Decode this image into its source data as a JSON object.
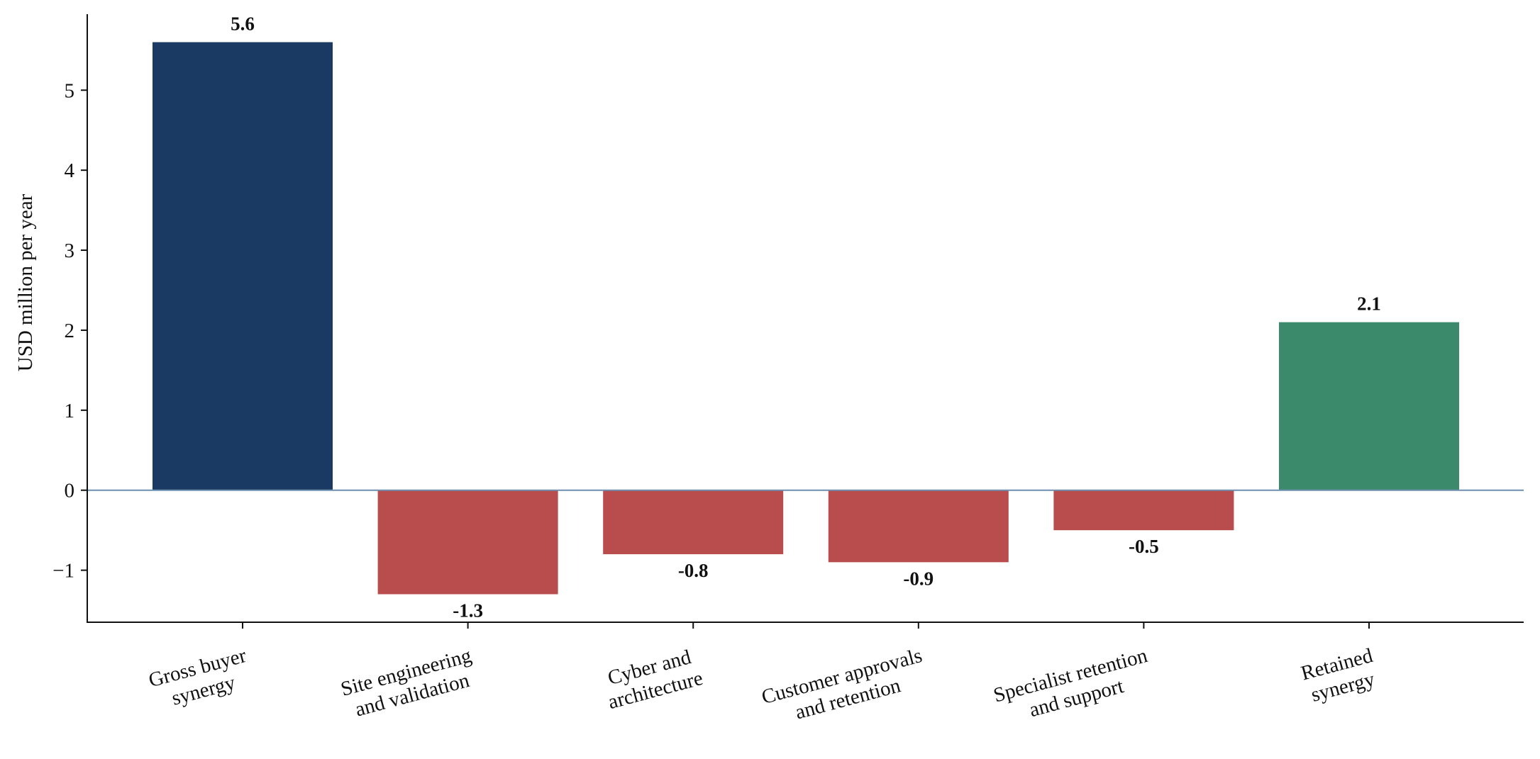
{
  "chart_data": {
    "type": "bar",
    "title": "",
    "xlabel": "",
    "ylabel": "USD million per year",
    "ylim": [
      -1.65,
      5.95
    ],
    "yticks": [
      -1,
      0,
      1,
      2,
      3,
      4,
      5
    ],
    "ytick_labels": [
      "−1",
      "0",
      "1",
      "2",
      "3",
      "4",
      "5"
    ],
    "grid": false,
    "legend": "none",
    "categories": [
      [
        "Gross buyer",
        "synergy"
      ],
      [
        "Site engineering",
        "and validation"
      ],
      [
        "Cyber and",
        "architecture"
      ],
      [
        "Customer approvals",
        "and retention"
      ],
      [
        "Specialist retention",
        "and support"
      ],
      [
        "Retained",
        "synergy"
      ]
    ],
    "values": [
      5.6,
      -1.3,
      -0.8,
      -0.9,
      -0.5,
      2.1
    ],
    "value_labels": [
      "5.6",
      "-1.3",
      "-0.8",
      "-0.9",
      "-0.5",
      "2.1"
    ],
    "colors": [
      "#1b3a63",
      "#b94c4c",
      "#b94c4c",
      "#b94c4c",
      "#b94c4c",
      "#3b8a6c"
    ],
    "zero_line_color": "#6f8fb0",
    "axis_color": "#111111"
  }
}
